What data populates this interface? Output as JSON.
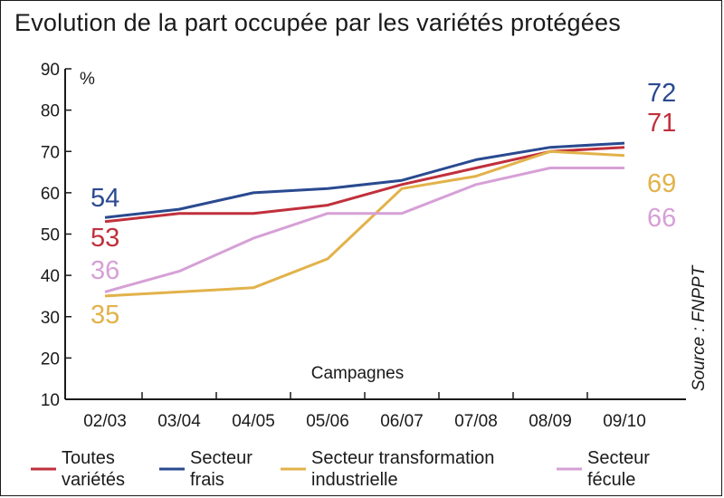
{
  "chart_data": {
    "type": "line",
    "title": "Evolution de la part occupée par les variétés  protégées",
    "unit_label": "%",
    "xlabel": "Campagnes",
    "source": "Source : FNPPT",
    "categories": [
      "02/03",
      "03/04",
      "04/05",
      "05/06",
      "06/07",
      "07/08",
      "08/09",
      "09/10"
    ],
    "ylim": [
      10,
      90
    ],
    "yticks": [
      "10",
      "20",
      "30",
      "40",
      "50",
      "60",
      "70",
      "80",
      "90"
    ],
    "grid": false,
    "legend_position": "bottom",
    "series": [
      {
        "name": "Toutes variétés",
        "legend_lines": [
          "Toutes",
          "variétés"
        ],
        "color": "#c0303c",
        "values": [
          53,
          55,
          55,
          57,
          62,
          66,
          70,
          71
        ],
        "start_label": "53",
        "end_label": "71"
      },
      {
        "name": "Secteur frais",
        "legend_lines": [
          "Secteur",
          "frais"
        ],
        "color": "#2a4a90",
        "values": [
          54,
          56,
          60,
          61,
          63,
          68,
          71,
          72
        ],
        "start_label": "54",
        "end_label": "72"
      },
      {
        "name": "Secteur transformation industrielle",
        "legend_lines": [
          "Secteur transformation",
          "industrielle"
        ],
        "color": "#e2b24a",
        "values": [
          35,
          36,
          37,
          44,
          61,
          64,
          70,
          69
        ],
        "start_label": "35",
        "end_label": "69"
      },
      {
        "name": "Secteur fécule",
        "legend_lines": [
          "Secteur",
          "fécule"
        ],
        "color": "#d6a0d6",
        "values": [
          36,
          41,
          49,
          55,
          55,
          62,
          66,
          66
        ],
        "start_label": "36",
        "end_label": "66"
      }
    ]
  }
}
